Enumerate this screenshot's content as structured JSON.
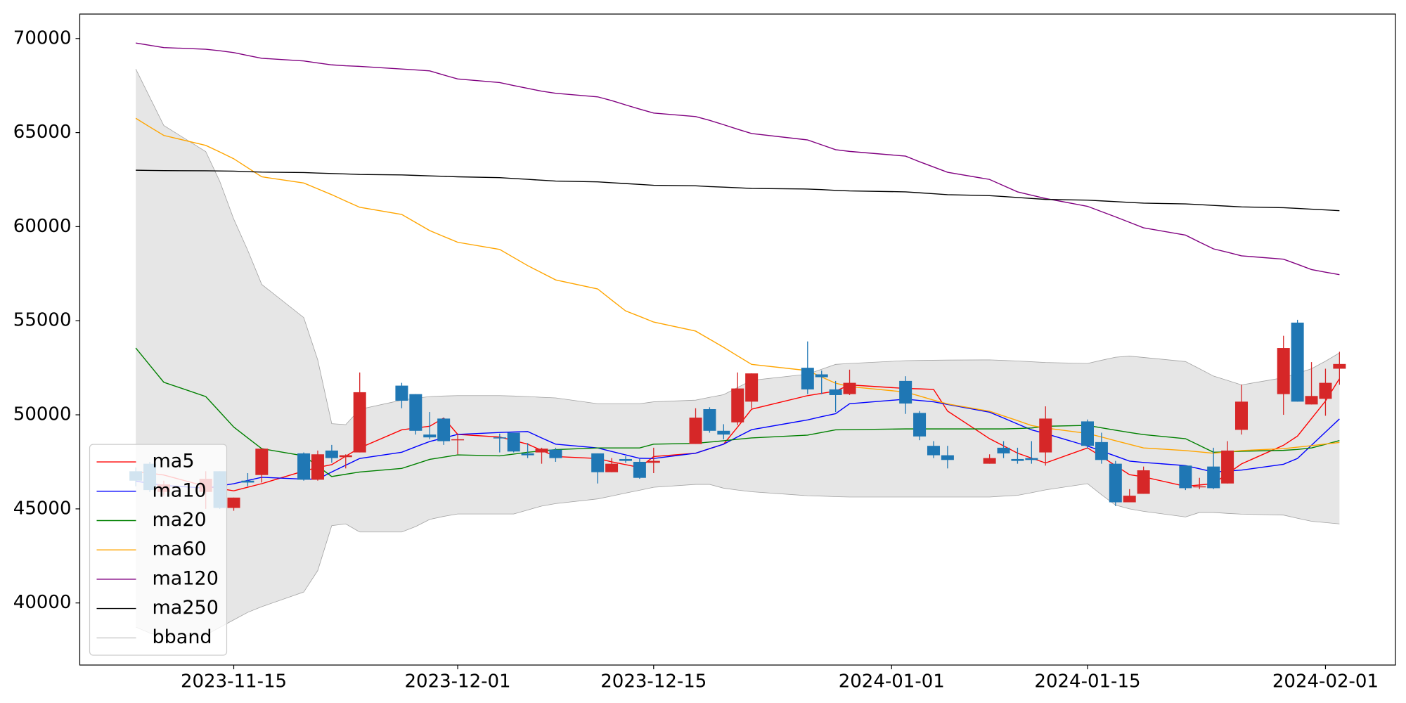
{
  "chart_data": {
    "type": "candlestick",
    "x": [
      "2023-11-08",
      "2023-11-09",
      "2023-11-10",
      "2023-11-13",
      "2023-11-14",
      "2023-11-15",
      "2023-11-16",
      "2023-11-17",
      "2023-11-20",
      "2023-11-21",
      "2023-11-22",
      "2023-11-23",
      "2023-11-24",
      "2023-11-27",
      "2023-11-28",
      "2023-11-29",
      "2023-11-30",
      "2023-12-01",
      "2023-12-04",
      "2023-12-05",
      "2023-12-06",
      "2023-12-07",
      "2023-12-08",
      "2023-12-11",
      "2023-12-12",
      "2023-12-13",
      "2023-12-14",
      "2023-12-15",
      "2023-12-18",
      "2023-12-19",
      "2023-12-20",
      "2023-12-21",
      "2023-12-22",
      "2023-12-26",
      "2023-12-27",
      "2023-12-28",
      "2023-12-29",
      "2024-01-02",
      "2024-01-03",
      "2024-01-04",
      "2024-01-05",
      "2024-01-08",
      "2024-01-09",
      "2024-01-10",
      "2024-01-11",
      "2024-01-12",
      "2024-01-15",
      "2024-01-16",
      "2024-01-17",
      "2024-01-18",
      "2024-01-19",
      "2024-01-22",
      "2024-01-23",
      "2024-01-24",
      "2024-01-25",
      "2024-01-26",
      "2024-01-29",
      "2024-01-30",
      "2024-01-31",
      "2024-02-01",
      "2024-02-02"
    ],
    "open": [
      47000,
      47400,
      45900,
      45900,
      47000,
      45050,
      46500,
      46800,
      47950,
      46550,
      48100,
      47750,
      48000,
      51550,
      51100,
      48950,
      49800,
      48650,
      48800,
      49050,
      47950,
      48000,
      48150,
      47950,
      46950,
      47650,
      47500,
      47450,
      48450,
      50300,
      49150,
      49600,
      50700,
      52500,
      52150,
      51350,
      51100,
      51800,
      50100,
      48350,
      47850,
      47400,
      48250,
      47650,
      47700,
      48000,
      49650,
      48550,
      47400,
      45350,
      45800,
      47300,
      46150,
      47250,
      46350,
      49200,
      51100,
      54900,
      50550,
      50850,
      52450
    ],
    "high": [
      47200,
      47500,
      46500,
      47000,
      47000,
      45600,
      46900,
      48200,
      48000,
      48100,
      48400,
      47900,
      52250,
      51700,
      51100,
      50150,
      49850,
      49000,
      49000,
      49050,
      48500,
      48250,
      48250,
      47950,
      47700,
      47800,
      47650,
      48250,
      50350,
      50400,
      49500,
      52250,
      52200,
      53900,
      52350,
      51800,
      52400,
      52050,
      50200,
      48600,
      48350,
      47900,
      48600,
      48250,
      48600,
      50450,
      49750,
      49050,
      47550,
      46050,
      47250,
      47300,
      46650,
      48250,
      48600,
      51600,
      54200,
      55050,
      52800,
      52450,
      53350
    ],
    "low": [
      46200,
      45900,
      45700,
      45000,
      45000,
      44900,
      46200,
      46400,
      46500,
      46500,
      47450,
      47150,
      48000,
      50350,
      48950,
      48700,
      48400,
      47900,
      48000,
      48000,
      47700,
      47400,
      47500,
      46350,
      46950,
      47450,
      46600,
      46900,
      48450,
      49050,
      48700,
      49450,
      50350,
      51100,
      51100,
      50150,
      51050,
      50050,
      48650,
      47700,
      47150,
      47400,
      47700,
      47400,
      47400,
      47300,
      48200,
      47400,
      45150,
      45350,
      45800,
      46000,
      46050,
      46050,
      46350,
      48950,
      50000,
      50700,
      50550,
      49950,
      51600
    ],
    "close": [
      46500,
      46000,
      46300,
      46600,
      45050,
      45600,
      46400,
      48200,
      46550,
      47900,
      47700,
      47850,
      51200,
      50750,
      49150,
      48800,
      48600,
      48700,
      48750,
      48050,
      47850,
      48200,
      47700,
      46950,
      47400,
      47550,
      46650,
      47550,
      49850,
      49150,
      48950,
      51400,
      52200,
      51350,
      52000,
      51050,
      51700,
      50600,
      48850,
      47850,
      47600,
      47700,
      47950,
      47550,
      47600,
      49800,
      48350,
      47600,
      45350,
      45700,
      47050,
      46100,
      46200,
      46100,
      48100,
      50700,
      53550,
      50700,
      51000,
      51700,
      52700
    ],
    "up_color": "#d62728",
    "down_color": "#1f77b4",
    "series": [
      {
        "name": "ma5",
        "color": "red",
        "values": [
          46960,
          46900,
          46800,
          46200,
          46080,
          45960,
          46150,
          46340,
          47010,
          47200,
          47350,
          47800,
          48240,
          49200,
          49300,
          49390,
          49830,
          48960,
          48820,
          48630,
          48440,
          48110,
          47780,
          47680,
          47500,
          47350,
          47200,
          47780,
          47960,
          48200,
          48440,
          49350,
          50300,
          51020,
          51140,
          51260,
          51590,
          51400,
          51380,
          51350,
          50200,
          48730,
          48350,
          47960,
          47700,
          47440,
          48240,
          47780,
          47300,
          46820,
          46700,
          46200,
          46270,
          46340,
          46870,
          47390,
          48380,
          48870,
          49800,
          50730,
          51920
        ]
      },
      {
        "name": "ma10",
        "color": "blue",
        "values": [
          46480,
          46350,
          46250,
          46100,
          46220,
          46340,
          46510,
          46680,
          46580,
          46580,
          46960,
          47320,
          47680,
          48010,
          48300,
          48580,
          48770,
          48960,
          49060,
          49090,
          49110,
          48770,
          48440,
          48240,
          48050,
          47870,
          47690,
          47680,
          47960,
          48200,
          48440,
          48830,
          49210,
          49730,
          49900,
          50060,
          50590,
          50830,
          50760,
          50690,
          50550,
          50140,
          49830,
          49510,
          49200,
          49000,
          48340,
          48070,
          47810,
          47540,
          47470,
          47300,
          47130,
          46960,
          47010,
          47060,
          47370,
          47680,
          48380,
          49080,
          49780
        ]
      },
      {
        "name": "ma20",
        "color": "green",
        "values": [
          53550,
          52640,
          51730,
          50970,
          50160,
          49350,
          48770,
          48200,
          47820,
          47270,
          46720,
          46840,
          46960,
          47150,
          47390,
          47630,
          47750,
          47870,
          47820,
          47910,
          48010,
          48080,
          48150,
          48240,
          48240,
          48240,
          48240,
          48440,
          48480,
          48550,
          48620,
          48700,
          48770,
          48920,
          49060,
          49200,
          49210,
          49250,
          49250,
          49250,
          49250,
          49250,
          49250,
          49270,
          49300,
          49390,
          49440,
          49310,
          49180,
          49060,
          48950,
          48730,
          48370,
          48010,
          48030,
          48060,
          48110,
          48160,
          48240,
          48430,
          48630
        ]
      },
      {
        "name": "ma60",
        "color": "orange",
        "values": [
          65760,
          65300,
          64850,
          64320,
          63970,
          63610,
          63130,
          62650,
          62320,
          62010,
          61700,
          61360,
          61030,
          60650,
          60220,
          59790,
          59480,
          59170,
          58790,
          58360,
          57930,
          57550,
          57170,
          56690,
          56100,
          55520,
          55230,
          54930,
          54450,
          54020,
          53590,
          53130,
          52680,
          52350,
          52010,
          51680,
          51500,
          51210,
          51000,
          50780,
          50580,
          50190,
          49940,
          49690,
          49430,
          49300,
          49010,
          48820,
          48620,
          48430,
          48240,
          48100,
          48030,
          47960,
          48030,
          48100,
          48200,
          48280,
          48360,
          48450,
          48530
        ]
      },
      {
        "name": "ma120",
        "color": "purple",
        "values": [
          69760,
          69640,
          69520,
          69430,
          69350,
          69250,
          69100,
          68950,
          68810,
          68700,
          68600,
          68550,
          68520,
          68380,
          68330,
          68280,
          68060,
          67850,
          67660,
          67500,
          67350,
          67200,
          67090,
          66900,
          66700,
          66470,
          66250,
          66040,
          65850,
          65650,
          65420,
          65180,
          64950,
          64610,
          64350,
          64090,
          64000,
          63750,
          63450,
          63170,
          62890,
          62510,
          62180,
          61850,
          61670,
          61500,
          61080,
          60800,
          60520,
          60230,
          59940,
          59550,
          59180,
          58820,
          58640,
          58450,
          58270,
          58000,
          57720,
          57580,
          57450
        ]
      },
      {
        "name": "ma250",
        "color": "black",
        "values": [
          63000,
          62990,
          62980,
          62970,
          62960,
          62950,
          62925,
          62900,
          62875,
          62850,
          62825,
          62800,
          62775,
          62750,
          62725,
          62700,
          62675,
          62650,
          62605,
          62560,
          62515,
          62470,
          62425,
          62380,
          62335,
          62290,
          62245,
          62200,
          62170,
          62130,
          62100,
          62070,
          62030,
          62000,
          61970,
          61930,
          61900,
          61850,
          61800,
          61750,
          61700,
          61650,
          61600,
          61550,
          61500,
          61450,
          61410,
          61370,
          61330,
          61290,
          61250,
          61210,
          61170,
          61130,
          61090,
          61050,
          61010,
          60970,
          60930,
          60890,
          60850
        ]
      }
    ],
    "band": {
      "name": "bband",
      "color": "gray",
      "upper": [
        68380,
        66880,
        65380,
        63990,
        62410,
        60400,
        58740,
        56930,
        55170,
        52920,
        49530,
        49480,
        50290,
        50780,
        50880,
        50970,
        51000,
        51020,
        51020,
        51000,
        50970,
        50930,
        50900,
        50590,
        50590,
        50590,
        50590,
        50690,
        50780,
        50930,
        51070,
        51450,
        51830,
        52160,
        52420,
        52680,
        52730,
        52880,
        52890,
        52900,
        52910,
        52920,
        52890,
        52860,
        52820,
        52780,
        52730,
        52900,
        53060,
        53120,
        53050,
        52830,
        52450,
        52060,
        51830,
        51590,
        51970,
        52200,
        52450,
        52850,
        53290
      ],
      "lower": [
        38720,
        38400,
        38200,
        38300,
        38700,
        39100,
        39500,
        39800,
        40580,
        41720,
        44110,
        44200,
        43770,
        43770,
        44060,
        44440,
        44600,
        44730,
        44730,
        44730,
        44940,
        45150,
        45280,
        45530,
        45680,
        45840,
        45990,
        46150,
        46300,
        46300,
        46100,
        46000,
        45910,
        45700,
        45680,
        45650,
        45630,
        45630,
        45630,
        45630,
        45630,
        45630,
        45680,
        45720,
        45860,
        46010,
        46340,
        45750,
        45200,
        45000,
        44870,
        44570,
        44810,
        44810,
        44760,
        44720,
        44670,
        44500,
        44340,
        44270,
        44200
      ]
    },
    "xlim": [
      "2023-11-04",
      "2024-02-06"
    ],
    "xticks": [
      "2023-11-15",
      "2023-12-01",
      "2023-12-15",
      "2024-01-01",
      "2024-01-15",
      "2024-02-01"
    ],
    "ylim": [
      36700,
      71300
    ],
    "yticks": [
      40000,
      45000,
      50000,
      55000,
      60000,
      65000,
      70000
    ],
    "grid": false,
    "legend": "lower left"
  }
}
